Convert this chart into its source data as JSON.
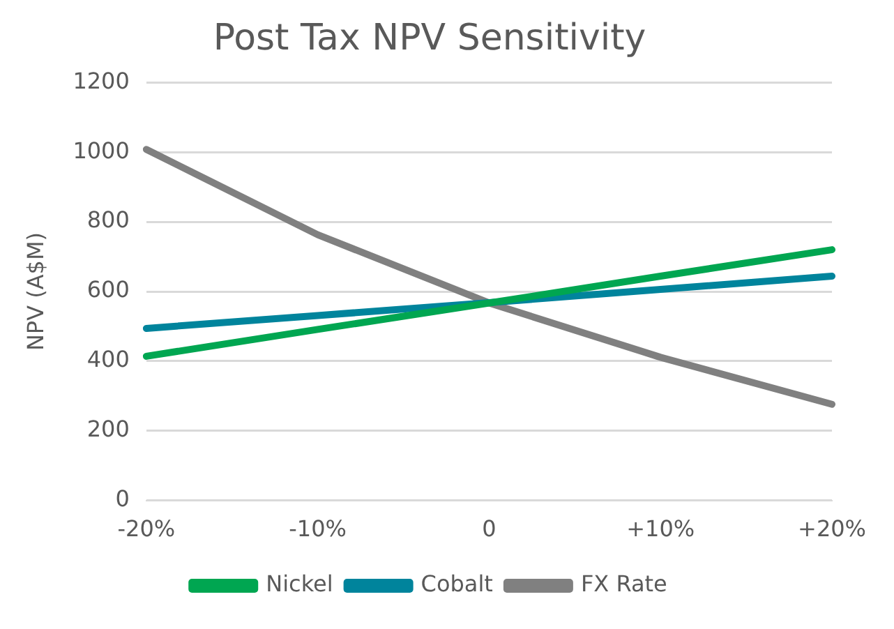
{
  "chart_data": {
    "type": "line",
    "title": "Post Tax NPV Sensitivity",
    "ylabel": "NPV (A$M)",
    "categories": [
      "-20%",
      "-10%",
      "0",
      "+10%",
      "+20%"
    ],
    "series": [
      {
        "name": "Nickel",
        "color": "#00a651",
        "values": [
          414,
          491,
          567,
          644,
          720
        ]
      },
      {
        "name": "Cobalt",
        "color": "#00849c",
        "values": [
          494,
          531,
          568,
          606,
          644
        ]
      },
      {
        "name": "FX Rate",
        "color": "#808080",
        "values": [
          1008,
          763,
          567,
          411,
          276
        ]
      }
    ],
    "ylim": [
      0,
      1200
    ],
    "yticks": [
      0,
      200,
      400,
      600,
      800,
      1000,
      1200
    ],
    "grid": "y",
    "legend": "bottom",
    "marker": "none",
    "line_style": "solid"
  }
}
